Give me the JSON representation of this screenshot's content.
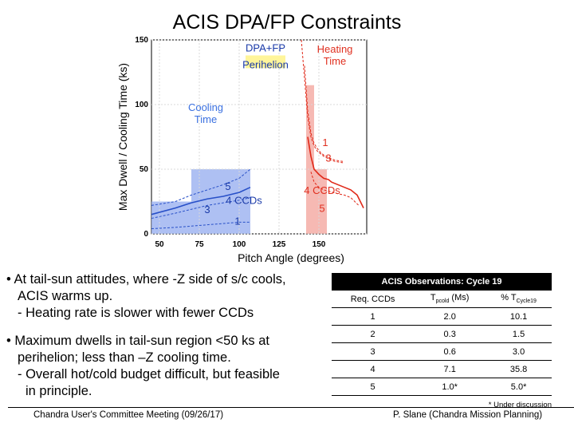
{
  "slide": {
    "title": "ACIS DPA/FP Constraints",
    "bullets": [
      {
        "lines": [
          "• At tail-sun attitudes, where -Z side of s/c cools,",
          "ACIS warms up.",
          "- Heating rate is slower with fewer CCDs"
        ]
      },
      {
        "lines": [
          "• Maximum dwells in tail-sun region <50 ks at",
          "perihelion; less than –Z cooling time.",
          "- Overall hot/cold budget difficult, but feasible",
          "in principle."
        ]
      }
    ],
    "footer_left": "Chandra User's Committee Meeting (09/26/17)",
    "footer_right": "P. Slane (Chandra Mission Planning)"
  },
  "table": {
    "title": "ACIS Observations: Cycle 19",
    "headers": [
      "Req. CCDs",
      "T",
      "pcold",
      " (Ms)",
      "% T",
      "Cycle19"
    ],
    "rows": [
      [
        "1",
        "2.0",
        "10.1"
      ],
      [
        "2",
        "0.3",
        "1.5"
      ],
      [
        "3",
        "0.6",
        "3.0"
      ],
      [
        "4",
        "7.1",
        "35.8"
      ],
      [
        "5",
        "1.0*",
        "5.0*"
      ]
    ],
    "note": "* Under discussion"
  },
  "chart_data": {
    "type": "line",
    "xlabel": "Pitch Angle (degrees)",
    "ylabel": "Max Dwell / Cooling Time (ks)",
    "xlim": [
      45,
      180
    ],
    "ylim": [
      0,
      150
    ],
    "xticks": [
      50,
      75,
      100,
      125,
      150
    ],
    "yticks": [
      0,
      50,
      100,
      150
    ],
    "annotations": {
      "dpa_fp": "DPA+FP",
      "perihelion": "Perihelion",
      "cooling_time": "Cooling\nTime",
      "heating_time": "Heating\nTime",
      "blue_label": "4 CCDs",
      "red_label": "4 CCDs",
      "blue_n5": "5",
      "blue_n3": "3",
      "blue_n1": "1",
      "red_n1": "1",
      "red_n3": "3",
      "red_n5": "5"
    },
    "colors": {
      "cooling": "#2850c8",
      "heating": "#e02818",
      "perihelion_box": "#fff59a",
      "cool_fill": "#9ab0f0",
      "heat_fill": "#f4a8a0"
    },
    "cooling_series": [
      {
        "name": "5",
        "x": [
          45,
          60,
          70,
          80,
          90,
          100,
          107
        ],
        "y": [
          22,
          25,
          30,
          34,
          38,
          43,
          50
        ]
      },
      {
        "name": "4",
        "x": [
          45,
          60,
          70,
          80,
          90,
          100,
          107
        ],
        "y": [
          15,
          20,
          24,
          27,
          29,
          32,
          36
        ]
      },
      {
        "name": "3",
        "x": [
          45,
          60,
          70,
          80,
          90,
          100,
          107
        ],
        "y": [
          12,
          16,
          19,
          22,
          24,
          26,
          28
        ]
      },
      {
        "name": "1",
        "x": [
          45,
          60,
          70,
          80,
          90,
          100,
          107
        ],
        "y": [
          4,
          5,
          6,
          7,
          8,
          9,
          9
        ]
      }
    ],
    "heating_series": [
      {
        "name": "1",
        "x": [
          139,
          141,
          143,
          145,
          147,
          149,
          151,
          153,
          156,
          160,
          165
        ],
        "y": [
          150,
          120,
          90,
          75,
          68,
          64,
          62,
          60,
          58,
          56,
          55
        ]
      },
      {
        "name": "3",
        "x": [
          141,
          143,
          145,
          147,
          149,
          151,
          153,
          156,
          160,
          165
        ],
        "y": [
          130,
          95,
          78,
          70,
          66,
          63,
          61,
          59,
          57,
          56
        ]
      },
      {
        "name": "4",
        "x": [
          143,
          145,
          147,
          150,
          153,
          156,
          158,
          162,
          166,
          170,
          174,
          178
        ],
        "y": [
          75,
          60,
          50,
          46,
          43,
          42,
          40,
          38,
          36,
          34,
          30,
          20
        ]
      },
      {
        "name": "5",
        "x": [
          145,
          147,
          150,
          153,
          156,
          159,
          162,
          166,
          170,
          175
        ],
        "y": [
          48,
          40,
          36,
          34,
          33,
          32,
          31,
          30,
          28,
          22
        ]
      }
    ],
    "shaded_regions": [
      {
        "kind": "cool",
        "x": [
          45,
          70
        ],
        "y": [
          0,
          25
        ]
      },
      {
        "kind": "cool",
        "x": [
          70,
          107
        ],
        "y": [
          0,
          50
        ]
      },
      {
        "kind": "heat",
        "x": [
          142,
          147
        ],
        "y": [
          0,
          115
        ]
      },
      {
        "kind": "heat",
        "x": [
          147,
          155
        ],
        "y": [
          0,
          50
        ]
      }
    ]
  }
}
